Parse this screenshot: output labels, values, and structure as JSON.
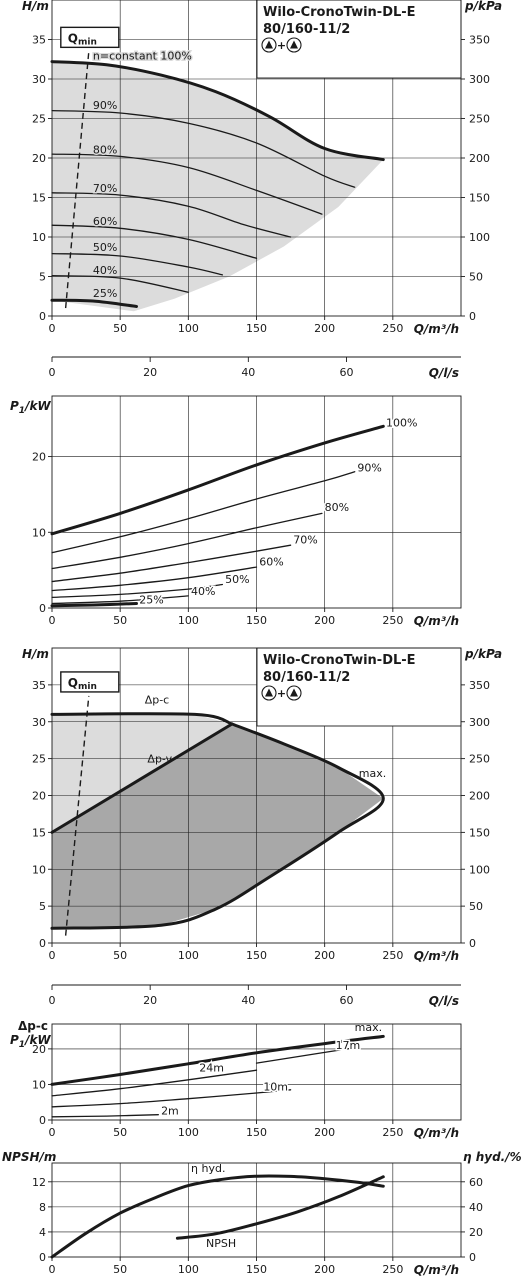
{
  "chart_data": [
    {
      "id": "hq1",
      "type": "line",
      "model_line1": "Wilo-CronoTwin-DL-E",
      "model_line2": "80/160-11/2",
      "model_plus": "+",
      "xlabel": "Q/m³/h",
      "ylabel": "H/m",
      "y2label": "p/kPa",
      "xlim": [
        0,
        300
      ],
      "ylim": [
        0,
        40
      ],
      "y2lim": [
        0,
        400
      ],
      "xticks": [
        0,
        50,
        100,
        150,
        200,
        250
      ],
      "yticks": [
        0,
        5,
        10,
        15,
        20,
        25,
        30,
        35
      ],
      "y2ticks": [
        0,
        50,
        100,
        150,
        200,
        250,
        300,
        350
      ],
      "qmin_label": "Q",
      "qmin_sub": "min",
      "qmin_line": [
        [
          10,
          1.0
        ],
        [
          27,
          33.5
        ]
      ],
      "shaded_region": [
        [
          0,
          32.2
        ],
        [
          40,
          31.8
        ],
        [
          80,
          30.5
        ],
        [
          120,
          28.4
        ],
        [
          160,
          25.2
        ],
        [
          200,
          21.2
        ],
        [
          243,
          19.8
        ],
        [
          210,
          13.8
        ],
        [
          170,
          8.8
        ],
        [
          130,
          5.0
        ],
        [
          90,
          2.2
        ],
        [
          60,
          0.6
        ],
        [
          0,
          2.0
        ]
      ],
      "series": [
        {
          "name": "n=constant 100%",
          "bold": true,
          "label_at": [
            30,
            32.5
          ],
          "points": [
            [
              0,
              32.2
            ],
            [
              40,
              31.8
            ],
            [
              80,
              30.5
            ],
            [
              120,
              28.4
            ],
            [
              160,
              25.2
            ],
            [
              200,
              21.2
            ],
            [
              243,
              19.8
            ]
          ]
        },
        {
          "name": "90%",
          "label_at": [
            30,
            26.2
          ],
          "points": [
            [
              0,
              26.0
            ],
            [
              50,
              25.7
            ],
            [
              100,
              24.4
            ],
            [
              150,
              21.9
            ],
            [
              200,
              17.7
            ],
            [
              222,
              16.3
            ]
          ]
        },
        {
          "name": "80%",
          "label_at": [
            30,
            20.6
          ],
          "points": [
            [
              0,
              20.5
            ],
            [
              50,
              20.2
            ],
            [
              100,
              18.8
            ],
            [
              150,
              15.9
            ],
            [
              198,
              12.9
            ]
          ]
        },
        {
          "name": "70%",
          "label_at": [
            30,
            15.7
          ],
          "points": [
            [
              0,
              15.6
            ],
            [
              50,
              15.3
            ],
            [
              100,
              13.9
            ],
            [
              140,
              11.6
            ],
            [
              175,
              10.0
            ]
          ]
        },
        {
          "name": "60%",
          "label_at": [
            30,
            11.5
          ],
          "points": [
            [
              0,
              11.5
            ],
            [
              50,
              11.1
            ],
            [
              100,
              9.7
            ],
            [
              150,
              7.3
            ]
          ]
        },
        {
          "name": "50%",
          "label_at": [
            30,
            8.2
          ],
          "points": [
            [
              0,
              7.9
            ],
            [
              50,
              7.6
            ],
            [
              100,
              6.2
            ],
            [
              125,
              5.2
            ]
          ]
        },
        {
          "name": "40%",
          "label_at": [
            30,
            5.3
          ],
          "points": [
            [
              0,
              5.1
            ],
            [
              50,
              4.8
            ],
            [
              100,
              3.0
            ]
          ]
        },
        {
          "name": "25%",
          "bold": true,
          "label_at": [
            30,
            2.4
          ],
          "points": [
            [
              0,
              2.0
            ],
            [
              30,
              1.9
            ],
            [
              62,
              1.2
            ]
          ]
        }
      ]
    },
    {
      "id": "ls1",
      "type": "axis",
      "xlabel": "Q/l/s",
      "xlim": [
        0,
        83.33
      ],
      "xticks": [
        0,
        20,
        40,
        60
      ]
    },
    {
      "id": "p1",
      "type": "line",
      "xlabel": "Q/m³/h",
      "ylabel_main": "P",
      "ylabel_sub": "1",
      "ylabel_unit": "/kW",
      "xlim": [
        0,
        300
      ],
      "ylim": [
        0,
        28
      ],
      "xticks": [
        0,
        50,
        100,
        150,
        200,
        250
      ],
      "yticks": [
        0,
        10,
        20
      ],
      "series": [
        {
          "name": "100%",
          "bold": true,
          "label_at": [
            245,
            24.0
          ],
          "points": [
            [
              0,
              9.8
            ],
            [
              50,
              12.5
            ],
            [
              100,
              15.6
            ],
            [
              150,
              18.9
            ],
            [
              200,
              21.8
            ],
            [
              243,
              24.0
            ]
          ]
        },
        {
          "name": "90%",
          "label_at": [
            224,
            18.0
          ],
          "points": [
            [
              0,
              7.3
            ],
            [
              50,
              9.4
            ],
            [
              100,
              11.8
            ],
            [
              150,
              14.4
            ],
            [
              200,
              16.8
            ],
            [
              222,
              18.0
            ]
          ]
        },
        {
          "name": "80%",
          "label_at": [
            200,
            12.8
          ],
          "points": [
            [
              0,
              5.2
            ],
            [
              50,
              6.7
            ],
            [
              100,
              8.5
            ],
            [
              150,
              10.6
            ],
            [
              198,
              12.5
            ]
          ]
        },
        {
          "name": "70%",
          "label_at": [
            177,
            8.5
          ],
          "points": [
            [
              0,
              3.5
            ],
            [
              50,
              4.6
            ],
            [
              100,
              6.0
            ],
            [
              150,
              7.5
            ],
            [
              175,
              8.3
            ]
          ]
        },
        {
          "name": "60%",
          "label_at": [
            152,
            5.6
          ],
          "points": [
            [
              0,
              2.3
            ],
            [
              50,
              3.0
            ],
            [
              100,
              4.0
            ],
            [
              150,
              5.4
            ]
          ]
        },
        {
          "name": "50%",
          "label_at": [
            127,
            3.3
          ],
          "points": [
            [
              0,
              1.4
            ],
            [
              50,
              1.8
            ],
            [
              100,
              2.5
            ],
            [
              125,
              3.1
            ]
          ]
        },
        {
          "name": "40%",
          "label_at": [
            102,
            1.7
          ],
          "points": [
            [
              0,
              0.6
            ],
            [
              50,
              0.9
            ],
            [
              100,
              1.6
            ]
          ]
        },
        {
          "name": "25%",
          "bold": true,
          "label_at": [
            64,
            0.6
          ],
          "points": [
            [
              0,
              0.3
            ],
            [
              30,
              0.4
            ],
            [
              62,
              0.6
            ]
          ]
        }
      ]
    },
    {
      "id": "hq2",
      "type": "line",
      "model_line1": "Wilo-CronoTwin-DL-E",
      "model_line2": "80/160-11/2",
      "model_plus": "+",
      "xlabel": "Q/m³/h",
      "ylabel": "H/m",
      "y2label": "p/kPa",
      "xlim": [
        0,
        300
      ],
      "ylim": [
        0,
        40
      ],
      "y2lim": [
        0,
        400
      ],
      "xticks": [
        0,
        50,
        100,
        150,
        200,
        250
      ],
      "yticks": [
        0,
        5,
        10,
        15,
        20,
        25,
        30,
        35
      ],
      "y2ticks": [
        0,
        50,
        100,
        150,
        200,
        250,
        300,
        350
      ],
      "qmin_label": "Q",
      "qmin_sub": "min",
      "qmin_line": [
        [
          10,
          1.0
        ],
        [
          27,
          33.5
        ]
      ],
      "light_region": [
        [
          0,
          31.0
        ],
        [
          105,
          31.0
        ],
        [
          132,
          29.7
        ],
        [
          0,
          15.0
        ]
      ],
      "dark_region": [
        [
          0,
          15.0
        ],
        [
          132,
          29.7
        ],
        [
          170,
          27.0
        ],
        [
          210,
          23.8
        ],
        [
          243,
          19.6
        ],
        [
          210,
          15.0
        ],
        [
          160,
          9.0
        ],
        [
          120,
          4.6
        ],
        [
          80,
          2.4
        ],
        [
          0,
          2.0
        ]
      ],
      "series": [
        {
          "name": "Δp-c",
          "bold": true,
          "label_at": [
            68,
            32.5
          ],
          "points": [
            [
              0,
              31.0
            ],
            [
              105,
              31.0
            ],
            [
              132,
              29.7
            ]
          ]
        },
        {
          "name": "Δp-v",
          "bold": true,
          "label_at": [
            70,
            24.5
          ],
          "points": [
            [
              0,
              15.0
            ],
            [
              132,
              29.7
            ]
          ]
        },
        {
          "name": "max.",
          "bold": true,
          "label_at": [
            225,
            22.5
          ],
          "points": [
            [
              132,
              29.7
            ],
            [
              170,
              27.0
            ],
            [
              210,
              23.8
            ],
            [
              243,
              19.6
            ],
            [
              210,
              15.0
            ],
            [
              160,
              9.0
            ],
            [
              120,
              4.6
            ],
            [
              80,
              2.4
            ],
            [
              0,
              2.0
            ]
          ]
        }
      ]
    },
    {
      "id": "ls2",
      "type": "axis",
      "xlabel": "Q/l/s",
      "xlim": [
        0,
        83.33
      ],
      "xticks": [
        0,
        20,
        40,
        60
      ]
    },
    {
      "id": "p2",
      "type": "line",
      "xlabel": "Q/m³/h",
      "ylabel_top": "Δp-c",
      "ylabel_main": "P",
      "ylabel_sub": "1",
      "ylabel_unit": "/kW",
      "xlim": [
        0,
        300
      ],
      "ylim": [
        0,
        27
      ],
      "xticks": [
        0,
        50,
        100,
        150,
        200,
        250
      ],
      "yticks": [
        0,
        10,
        20
      ],
      "series": [
        {
          "name": "max.",
          "bold": true,
          "label_at": [
            222,
            25.0
          ],
          "points": [
            [
              0,
              10.0
            ],
            [
              50,
              12.8
            ],
            [
              100,
              15.8
            ],
            [
              150,
              18.9
            ],
            [
              200,
              21.5
            ],
            [
              243,
              23.5
            ]
          ]
        },
        {
          "name": "24m",
          "label_at": [
            108,
            13.6
          ],
          "points": [
            [
              0,
              6.8
            ],
            [
              50,
              8.8
            ],
            [
              100,
              11.3
            ],
            [
              150,
              14.0
            ]
          ]
        },
        {
          "name": "17m",
          "label_at": [
            208,
            20.0
          ],
          "points": [
            [
              150,
              16.0
            ],
            [
              200,
              19.0
            ],
            [
              225,
              20.5
            ]
          ]
        },
        {
          "name": "10m",
          "label_at": [
            155,
            8.3
          ],
          "points": [
            [
              0,
              3.7
            ],
            [
              50,
              4.6
            ],
            [
              100,
              6.0
            ],
            [
              150,
              7.6
            ],
            [
              175,
              8.5
            ]
          ]
        },
        {
          "name": "2m",
          "label_at": [
            80,
            1.6
          ],
          "points": [
            [
              0,
              0.9
            ],
            [
              40,
              1.1
            ],
            [
              78,
              1.5
            ]
          ]
        }
      ]
    },
    {
      "id": "npsh",
      "type": "line",
      "xlabel": "Q/m³/h",
      "ylabel": "NPSH/m",
      "y2label": "η hyd./%",
      "xlim": [
        0,
        300
      ],
      "ylim": [
        0,
        15
      ],
      "y2lim": [
        0,
        75
      ],
      "xticks": [
        0,
        50,
        100,
        150,
        200,
        250
      ],
      "yticks": [
        0,
        4,
        8,
        12
      ],
      "y2ticks": [
        0,
        20,
        40,
        60
      ],
      "series": [
        {
          "name": "η hyd.",
          "axis": "right",
          "bold": true,
          "label_at": [
            102,
            68
          ],
          "points": [
            [
              0,
              0
            ],
            [
              25,
              19
            ],
            [
              50,
              35
            ],
            [
              75,
              47
            ],
            [
              100,
              57
            ],
            [
              125,
              62
            ],
            [
              150,
              64.5
            ],
            [
              175,
              64.3
            ],
            [
              200,
              62.5
            ],
            [
              225,
              59.5
            ],
            [
              243,
              56.5
            ]
          ]
        },
        {
          "name": "NPSH",
          "axis": "left",
          "bold": true,
          "label_at": [
            113,
            1.6
          ],
          "points": [
            [
              92,
              3.0
            ],
            [
              120,
              3.7
            ],
            [
              150,
              5.3
            ],
            [
              180,
              7.2
            ],
            [
              210,
              9.6
            ],
            [
              243,
              12.8
            ]
          ]
        }
      ]
    }
  ]
}
